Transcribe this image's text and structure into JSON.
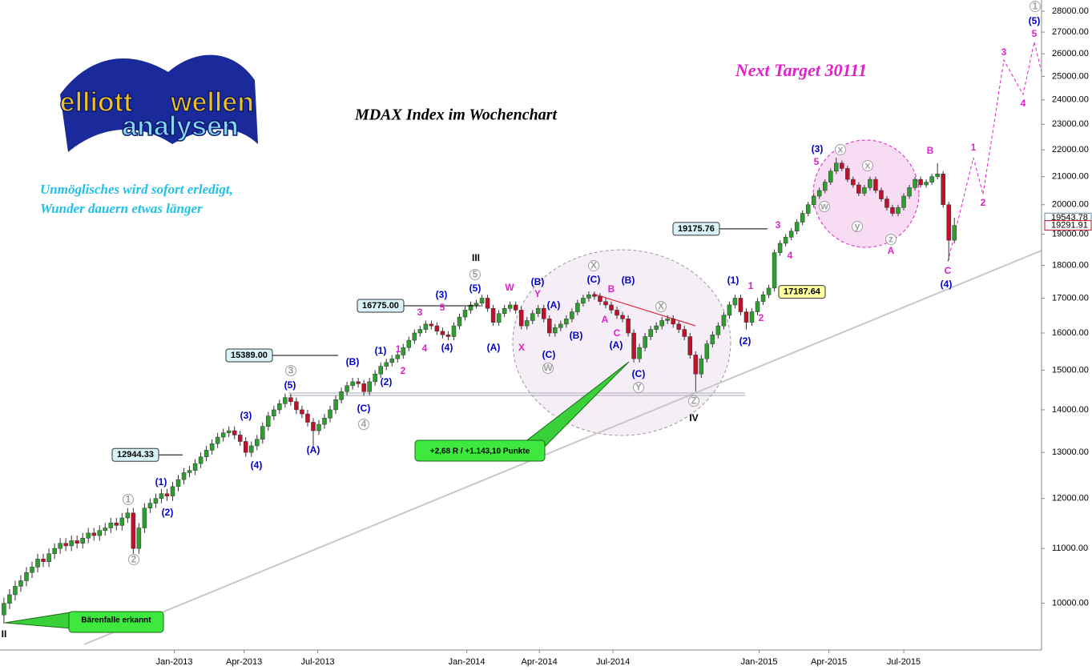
{
  "chart_data": {
    "type": "candlestick",
    "title": "MDAX Index im Wochenchart",
    "target": "Next Target 30111",
    "slogan": [
      "Unmöglisches wird sofort erledigt,",
      "Wunder dauern etwas länger"
    ],
    "logo": [
      "elliott",
      "wellen",
      "analysen"
    ],
    "log_scale": true,
    "up_color": "#2e9e2e",
    "down_color": "#c0102a",
    "xlim": [
      -0.7,
      184.5
    ],
    "xticks": [
      {
        "value": 30.3,
        "label": "Jan-2013"
      },
      {
        "value": 42.7,
        "label": "Apr-2013"
      },
      {
        "value": 55.8,
        "label": "Jul-2013"
      },
      {
        "value": 82.3,
        "label": "Jan-2014"
      },
      {
        "value": 95.2,
        "label": "Apr-2014"
      },
      {
        "value": 108.3,
        "label": "Jul-2014"
      },
      {
        "value": 134.3,
        "label": "Jan-2015"
      },
      {
        "value": 146.7,
        "label": "Apr-2015"
      },
      {
        "value": 160,
        "label": "Jul-2015"
      }
    ],
    "ylim": [
      9220,
      28550
    ],
    "yticks": [
      {
        "value": 10000,
        "label": "10000.00"
      },
      {
        "value": 11000,
        "label": "11000.00"
      },
      {
        "value": 12000,
        "label": "12000.00"
      },
      {
        "value": 13000,
        "label": "13000.00"
      },
      {
        "value": 14000,
        "label": "14000.00"
      },
      {
        "value": 15000,
        "label": "15000.00"
      },
      {
        "value": 16000,
        "label": "16000.00"
      },
      {
        "value": 17000,
        "label": "17000.00"
      },
      {
        "value": 18000,
        "label": "18000.00"
      },
      {
        "value": 19000,
        "label": "19000.00"
      },
      {
        "value": 20000,
        "label": "20000.00"
      },
      {
        "value": 21000,
        "label": "21000.00"
      },
      {
        "value": 22000,
        "label": "22000.00"
      },
      {
        "value": 23000,
        "label": "23000.00"
      },
      {
        "value": 24000,
        "label": "24000.00"
      },
      {
        "value": 25000,
        "label": "25000.00"
      },
      {
        "value": 26000,
        "label": "26000.00"
      },
      {
        "value": 27000,
        "label": "27000.00"
      },
      {
        "value": 28000,
        "label": "28000.00"
      }
    ],
    "open": [
      9800,
      10000,
      10150,
      10300,
      10400,
      10550,
      10650,
      10800,
      10750,
      10900,
      11000,
      11100,
      11050,
      11150,
      11100,
      11200,
      11300,
      11250,
      11350,
      11400,
      11500,
      11450,
      11600,
      11700,
      11000,
      11400,
      11800,
      11900,
      12000,
      12100,
      12050,
      12250,
      12400,
      12550,
      12600,
      12750,
      12900,
      13050,
      13200,
      13350,
      13450,
      13500,
      13400,
      13250,
      13000,
      13150,
      13300,
      13600,
      13850,
      14000,
      14150,
      14300,
      14200,
      14000,
      13900,
      13700,
      13500,
      13650,
      13800,
      14000,
      14250,
      14450,
      14600,
      14700,
      14650,
      14450,
      14700,
      14900,
      15100,
      15200,
      15300,
      15400,
      15600,
      15800,
      16000,
      16100,
      16250,
      16200,
      16050,
      15950,
      15900,
      16200,
      16450,
      16650,
      16800,
      16850,
      17000,
      16700,
      16300,
      16550,
      16700,
      16800,
      16650,
      16200,
      16350,
      16550,
      16700,
      16400,
      16000,
      16150,
      16250,
      16400,
      16600,
      16850,
      17000,
      17100,
      17050,
      16900,
      16800,
      16650,
      16500,
      16400,
      16000,
      15300,
      15600,
      15900,
      16100,
      16200,
      16350,
      16400,
      16250,
      16100,
      15900,
      15400,
      14900,
      15300,
      15700,
      15950,
      16200,
      16500,
      16800,
      17000,
      16600,
      16300,
      16600,
      16900,
      17100,
      17300,
      18400,
      18700,
      18900,
      19100,
      19400,
      19700,
      20000,
      20300,
      20500,
      20800,
      21200,
      21500,
      21300,
      20900,
      20700,
      20400,
      20600,
      20900,
      20500,
      20200,
      19900,
      19700,
      19900,
      20300,
      20600,
      20900,
      20700,
      20800,
      21000,
      21100,
      20000,
      18800
    ],
    "high": [
      10100,
      10250,
      10400,
      10500,
      10650,
      10750,
      10900,
      10900,
      11000,
      11100,
      11200,
      11200,
      11250,
      11250,
      11300,
      11400,
      11400,
      11450,
      11500,
      11600,
      11600,
      11700,
      11800,
      11800,
      11500,
      11900,
      12000,
      12100,
      12200,
      12200,
      12350,
      12500,
      12650,
      12700,
      12850,
      13000,
      13150,
      13300,
      13450,
      13550,
      13600,
      13600,
      13500,
      13350,
      13250,
      13400,
      13700,
      13950,
      14100,
      14250,
      14400,
      14400,
      14300,
      14100,
      14000,
      13800,
      13750,
      13900,
      14100,
      14350,
      14550,
      14700,
      14800,
      14800,
      14750,
      14800,
      15000,
      15200,
      15300,
      15400,
      15500,
      15700,
      15900,
      16100,
      16200,
      16350,
      16350,
      16300,
      16150,
      16050,
      16300,
      16550,
      16750,
      16900,
      16950,
      17100,
      17100,
      16800,
      16650,
      16800,
      16900,
      16900,
      16750,
      16450,
      16650,
      16800,
      16800,
      16500,
      16250,
      16350,
      16500,
      16700,
      16950,
      17100,
      17200,
      17200,
      17150,
      17000,
      16900,
      16750,
      16600,
      16500,
      16100,
      15700,
      16000,
      16200,
      16300,
      16450,
      16500,
      16500,
      16350,
      16200,
      16000,
      15500,
      15400,
      15800,
      16050,
      16300,
      16600,
      16900,
      17100,
      17100,
      16700,
      16700,
      17000,
      17200,
      17400,
      18500,
      18800,
      19000,
      19200,
      19500,
      19800,
      20100,
      20400,
      20600,
      20900,
      21300,
      21700,
      21600,
      21400,
      21000,
      20800,
      20700,
      21000,
      21000,
      20600,
      20300,
      20000,
      20000,
      20400,
      20700,
      21000,
      21000,
      20900,
      21100,
      21500,
      21200,
      20100,
      19550
    ],
    "low": [
      9650,
      9900,
      10050,
      10200,
      10300,
      10450,
      10550,
      10650,
      10650,
      10800,
      10900,
      10950,
      10950,
      11000,
      11000,
      11100,
      11150,
      11150,
      11250,
      11300,
      11350,
      11350,
      11500,
      10900,
      10900,
      11300,
      11700,
      11800,
      11900,
      11950,
      11950,
      12150,
      12300,
      12450,
      12500,
      12650,
      12800,
      12950,
      13100,
      13250,
      13350,
      13300,
      13150,
      12900,
      12900,
      13050,
      13200,
      13500,
      13750,
      13900,
      14050,
      14100,
      13900,
      13800,
      13600,
      13150,
      13400,
      13550,
      13700,
      13900,
      14150,
      14350,
      14500,
      14550,
      14350,
      14350,
      14600,
      14800,
      15000,
      15100,
      15200,
      15300,
      15500,
      15700,
      15900,
      16000,
      16100,
      15950,
      15850,
      15800,
      15800,
      16100,
      16350,
      16550,
      16700,
      16750,
      16600,
      16200,
      16200,
      16450,
      16600,
      16550,
      16100,
      16100,
      16250,
      16450,
      16300,
      15900,
      15900,
      16050,
      16150,
      16300,
      16500,
      16750,
      16900,
      16950,
      16800,
      16700,
      16550,
      16400,
      16300,
      15900,
      15200,
      15200,
      15500,
      15800,
      16000,
      16100,
      16250,
      16150,
      16000,
      15800,
      15300,
      14450,
      14800,
      15200,
      15600,
      15850,
      16100,
      16400,
      16700,
      16500,
      16100,
      16200,
      16500,
      16800,
      17000,
      17200,
      18300,
      18600,
      18800,
      19000,
      19300,
      19600,
      19900,
      20200,
      20400,
      20700,
      21100,
      21200,
      20800,
      20600,
      20300,
      20300,
      20500,
      20400,
      20100,
      19800,
      19600,
      19600,
      19800,
      20200,
      20500,
      20600,
      20600,
      20700,
      20900,
      19900,
      18150,
      18700
    ],
    "close": [
      10000,
      10150,
      10300,
      10400,
      10550,
      10650,
      10800,
      10750,
      10900,
      11000,
      11100,
      11050,
      11150,
      11100,
      11200,
      11300,
      11250,
      11350,
      11400,
      11500,
      11450,
      11600,
      11700,
      11000,
      11400,
      11800,
      11900,
      12000,
      12100,
      12050,
      12250,
      12400,
      12550,
      12600,
      12750,
      12900,
      13050,
      13200,
      13350,
      13450,
      13500,
      13400,
      13250,
      13000,
      13150,
      13300,
      13600,
      13850,
      14000,
      14150,
      14300,
      14200,
      14000,
      13900,
      13700,
      13500,
      13650,
      13800,
      14000,
      14250,
      14450,
      14600,
      14700,
      14650,
      14450,
      14700,
      14900,
      15100,
      15200,
      15300,
      15400,
      15600,
      15800,
      16000,
      16100,
      16250,
      16200,
      16050,
      15950,
      15900,
      16200,
      16450,
      16650,
      16800,
      16850,
      17000,
      16700,
      16300,
      16550,
      16700,
      16800,
      16650,
      16200,
      16350,
      16550,
      16700,
      16400,
      16000,
      16150,
      16250,
      16400,
      16600,
      16850,
      17000,
      17100,
      17050,
      16900,
      16800,
      16650,
      16500,
      16400,
      16000,
      15300,
      15600,
      15900,
      16100,
      16200,
      16350,
      16400,
      16250,
      16100,
      15900,
      15400,
      14900,
      15300,
      15700,
      15950,
      16200,
      16500,
      16800,
      17000,
      16600,
      16300,
      16600,
      16900,
      17100,
      17300,
      18400,
      18700,
      18900,
      19100,
      19400,
      19700,
      20000,
      20300,
      20500,
      20800,
      21200,
      21500,
      21300,
      20900,
      20700,
      20400,
      20600,
      20900,
      20500,
      20200,
      19900,
      19700,
      19900,
      20300,
      20600,
      20900,
      20700,
      20800,
      21000,
      21100,
      20000,
      18800,
      19292
    ],
    "level_labels": [
      {
        "value": 12944.33,
        "label": "12944.33"
      },
      {
        "value": 15389.0,
        "label": "15389.00"
      },
      {
        "value": 16775.0,
        "label": "16775.00"
      },
      {
        "value": 19175.76,
        "label": "19175.76"
      },
      {
        "value": 17187.64,
        "label": "17187.64"
      }
    ],
    "price_labels": [
      {
        "value": 19543.78,
        "label": "19543.78"
      },
      {
        "value": 19291.91,
        "label": "19291.91"
      }
    ],
    "callouts": [
      "+2,68 R / +1.143,10 Punkte",
      "Bärenfalle erkannt"
    ],
    "wave_labels": {
      "blue": {
        "color": "#0000cc",
        "texts": [
          "(1)",
          "(2)",
          "(3)",
          "(4)",
          "(5)",
          "(A)",
          "(B)",
          "(C)",
          "(1)",
          "(2)",
          "(3)",
          "(4)",
          "(5)",
          "(A)",
          "(B)",
          "(A)",
          "(C)",
          "(B)",
          "(C)",
          "(B)",
          "(A)",
          "(C)",
          "(1)",
          "(2)",
          "(3)",
          "(4)",
          "(5)"
        ]
      },
      "magenta": {
        "color": "#e020c8",
        "texts": [
          "1",
          "2",
          "3",
          "4",
          "5",
          "W",
          "Y",
          "X",
          "B",
          "A",
          "C",
          "1",
          "2",
          "3",
          "4",
          "5",
          "B",
          "A",
          "C",
          "1",
          "2",
          "3",
          "4",
          "5"
        ]
      },
      "circled": {
        "color": "#a0a0a0",
        "texts": [
          "1",
          "2",
          "3",
          "4",
          "5",
          "W",
          "X",
          "Y",
          "X",
          "Z",
          "x",
          "w",
          "x",
          "y",
          "z",
          "1"
        ]
      },
      "roman": {
        "color": "#000000",
        "texts": [
          "II",
          "III",
          "IV"
        ]
      }
    }
  }
}
